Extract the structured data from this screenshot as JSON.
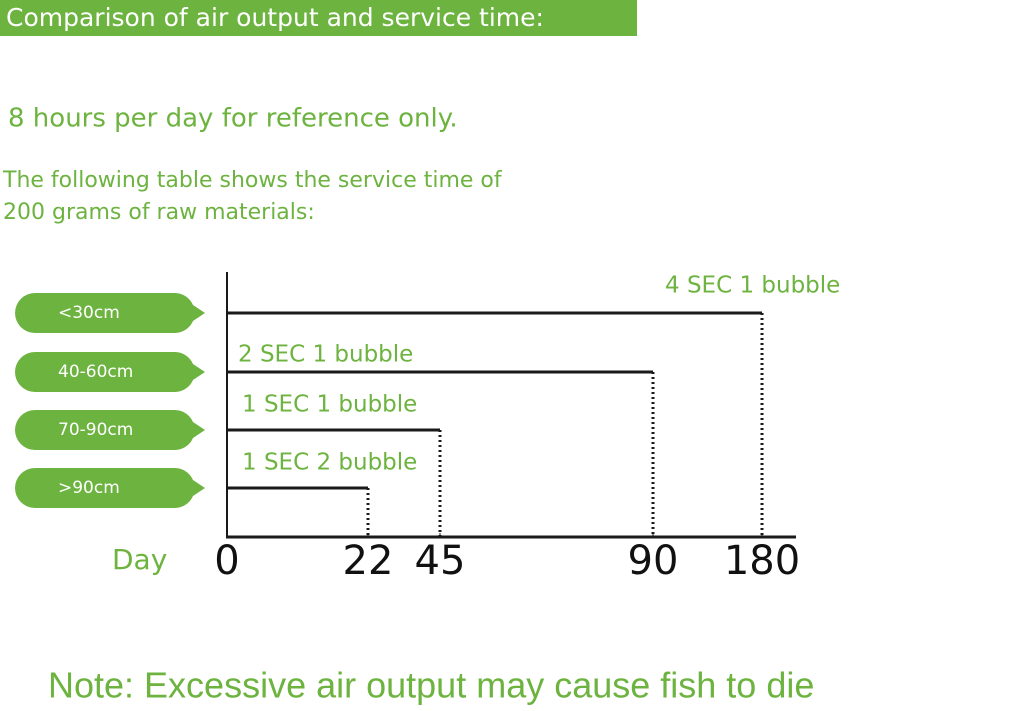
{
  "chart_data": {
    "type": "bar",
    "orientation": "horizontal",
    "title": "Comparison of air output and service time:",
    "subtitle": "8 hours per day for reference only.",
    "description": [
      "The following table shows the service time of",
      "200 grams of raw materials:"
    ],
    "categories": [
      "<30cm",
      "40-60cm",
      "70-90cm",
      ">90cm"
    ],
    "values": [
      180,
      90,
      45,
      22
    ],
    "bar_labels": [
      "4 SEC 1 bubble",
      "2 SEC 1 bubble",
      "1 SEC 1 bubble",
      "1 SEC 2 bubble"
    ],
    "x_label": "Day",
    "xlim": [
      0,
      180
    ],
    "xticks": [
      0,
      22,
      45,
      90,
      180
    ],
    "color": "#1a1a1a",
    "accent": "#6db33f",
    "note": "Note: Excessive air output may cause fish to die"
  }
}
